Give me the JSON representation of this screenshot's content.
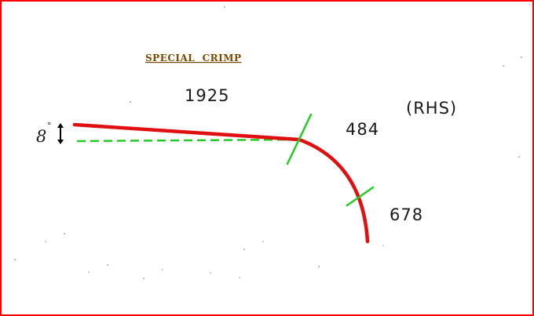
{
  "title": "SPECIAL  CRIMP",
  "segments": [
    {
      "length": "1925"
    },
    {
      "length": "484"
    },
    {
      "length": "678"
    }
  ],
  "side": "(RHS)",
  "angle": {
    "value": "8",
    "unit": "°"
  },
  "colors": {
    "frame": "#ff0000",
    "bar": "#e01010",
    "reference_line": "#22cc22",
    "title": "#7a4a00",
    "text": "#1a1a1a"
  }
}
